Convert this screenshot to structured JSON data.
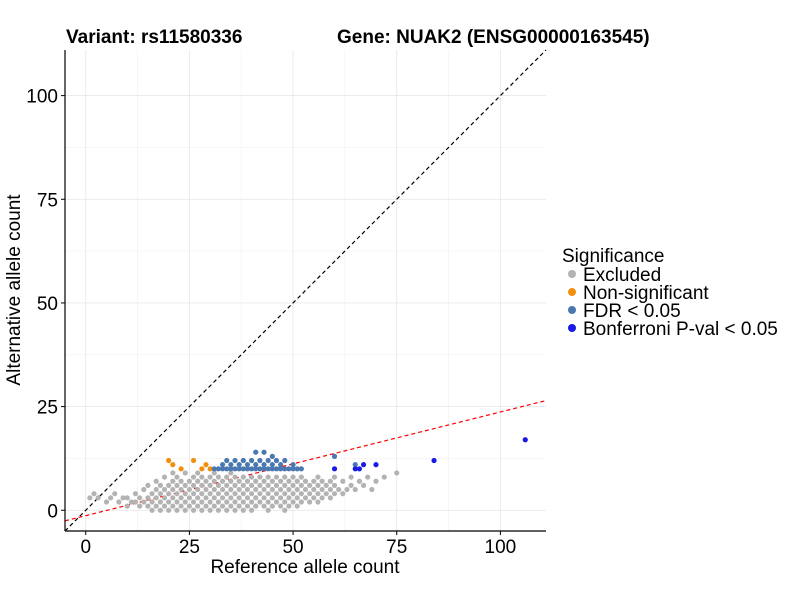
{
  "chart_data": {
    "type": "scatter",
    "title_left": "Variant: rs11580336",
    "title_right": "Gene: NUAK2 (ENSG00000163545)",
    "xlabel": "Reference allele count",
    "ylabel": "Alternative allele count",
    "xlim": [
      -5,
      111
    ],
    "ylim": [
      -5,
      111
    ],
    "xticks": [
      0,
      25,
      50,
      75,
      100
    ],
    "yticks": [
      0,
      25,
      50,
      75,
      100
    ],
    "grid": true,
    "reference_lines": [
      {
        "name": "identity-line",
        "slope": 1,
        "intercept": 0,
        "style": "dashed",
        "color": "#000000"
      },
      {
        "name": "fit-line",
        "slope": 0.25,
        "intercept": -1.3,
        "style": "dashed",
        "color": "#ff0000"
      }
    ],
    "legend": {
      "title": "Significance",
      "position": "right",
      "entries": [
        {
          "label": "Excluded",
          "color": "#b3b3b3"
        },
        {
          "label": "Non-significant",
          "color": "#f0900f"
        },
        {
          "label": "FDR < 0.05",
          "color": "#4a78b0"
        },
        {
          "label": "Bonferroni P-val < 0.05",
          "color": "#1a1ae6"
        }
      ]
    },
    "series": [
      {
        "name": "Excluded",
        "color": "#b3b3b3",
        "points": [
          [
            1,
            3
          ],
          [
            2,
            4
          ],
          [
            3,
            3
          ],
          [
            5,
            2
          ],
          [
            6,
            3
          ],
          [
            7,
            4
          ],
          [
            8,
            2
          ],
          [
            9,
            3
          ],
          [
            10,
            3
          ],
          [
            10,
            1
          ],
          [
            11,
            2
          ],
          [
            12,
            4
          ],
          [
            12,
            2
          ],
          [
            13,
            1
          ],
          [
            13,
            3
          ],
          [
            14,
            2
          ],
          [
            14,
            5
          ],
          [
            15,
            1
          ],
          [
            15,
            3
          ],
          [
            15,
            6
          ],
          [
            16,
            2
          ],
          [
            16,
            4
          ],
          [
            16,
            0
          ],
          [
            17,
            1
          ],
          [
            17,
            3
          ],
          [
            17,
            5
          ],
          [
            17,
            7
          ],
          [
            18,
            2
          ],
          [
            18,
            4
          ],
          [
            18,
            0
          ],
          [
            18,
            6
          ],
          [
            19,
            1
          ],
          [
            19,
            3
          ],
          [
            19,
            5
          ],
          [
            19,
            8
          ],
          [
            20,
            0
          ],
          [
            20,
            2
          ],
          [
            20,
            4
          ],
          [
            20,
            6
          ],
          [
            21,
            1
          ],
          [
            21,
            3
          ],
          [
            21,
            5
          ],
          [
            21,
            7
          ],
          [
            21,
            9
          ],
          [
            22,
            0
          ],
          [
            22,
            2
          ],
          [
            22,
            4
          ],
          [
            22,
            6
          ],
          [
            22,
            8
          ],
          [
            23,
            1
          ],
          [
            23,
            3
          ],
          [
            23,
            5
          ],
          [
            23,
            7
          ],
          [
            24,
            0
          ],
          [
            24,
            2
          ],
          [
            24,
            4
          ],
          [
            24,
            6
          ],
          [
            24,
            9
          ],
          [
            25,
            1
          ],
          [
            25,
            3
          ],
          [
            25,
            5
          ],
          [
            25,
            7
          ],
          [
            26,
            0
          ],
          [
            26,
            2
          ],
          [
            26,
            4
          ],
          [
            26,
            6
          ],
          [
            26,
            8
          ],
          [
            27,
            1
          ],
          [
            27,
            3
          ],
          [
            27,
            5
          ],
          [
            27,
            7
          ],
          [
            27,
            9
          ],
          [
            28,
            0
          ],
          [
            28,
            2
          ],
          [
            28,
            4
          ],
          [
            28,
            6
          ],
          [
            28,
            8
          ],
          [
            29,
            1
          ],
          [
            29,
            3
          ],
          [
            29,
            5
          ],
          [
            29,
            7
          ],
          [
            30,
            0
          ],
          [
            30,
            2
          ],
          [
            30,
            4
          ],
          [
            30,
            6
          ],
          [
            30,
            8
          ],
          [
            31,
            1
          ],
          [
            31,
            3
          ],
          [
            31,
            5
          ],
          [
            31,
            7
          ],
          [
            31,
            9
          ],
          [
            32,
            0
          ],
          [
            32,
            2
          ],
          [
            32,
            4
          ],
          [
            32,
            6
          ],
          [
            32,
            8
          ],
          [
            33,
            1
          ],
          [
            33,
            3
          ],
          [
            33,
            5
          ],
          [
            33,
            7
          ],
          [
            34,
            0
          ],
          [
            34,
            2
          ],
          [
            34,
            4
          ],
          [
            34,
            6
          ],
          [
            34,
            8
          ],
          [
            35,
            1
          ],
          [
            35,
            3
          ],
          [
            35,
            5
          ],
          [
            35,
            7
          ],
          [
            35,
            9
          ],
          [
            36,
            0
          ],
          [
            36,
            2
          ],
          [
            36,
            4
          ],
          [
            36,
            6
          ],
          [
            36,
            8
          ],
          [
            37,
            1
          ],
          [
            37,
            3
          ],
          [
            37,
            5
          ],
          [
            37,
            7
          ],
          [
            38,
            0
          ],
          [
            38,
            2
          ],
          [
            38,
            4
          ],
          [
            38,
            6
          ],
          [
            38,
            8
          ],
          [
            39,
            1
          ],
          [
            39,
            3
          ],
          [
            39,
            5
          ],
          [
            39,
            7
          ],
          [
            40,
            0
          ],
          [
            40,
            2
          ],
          [
            40,
            4
          ],
          [
            40,
            6
          ],
          [
            40,
            8
          ],
          [
            41,
            1
          ],
          [
            41,
            3
          ],
          [
            41,
            5
          ],
          [
            41,
            7
          ],
          [
            42,
            2
          ],
          [
            42,
            4
          ],
          [
            42,
            6
          ],
          [
            42,
            8
          ],
          [
            43,
            1
          ],
          [
            43,
            3
          ],
          [
            43,
            5
          ],
          [
            43,
            7
          ],
          [
            44,
            0
          ],
          [
            44,
            2
          ],
          [
            44,
            4
          ],
          [
            44,
            6
          ],
          [
            44,
            8
          ],
          [
            45,
            1
          ],
          [
            45,
            3
          ],
          [
            45,
            5
          ],
          [
            45,
            7
          ],
          [
            46,
            2
          ],
          [
            46,
            4
          ],
          [
            46,
            6
          ],
          [
            46,
            8
          ],
          [
            47,
            1
          ],
          [
            47,
            3
          ],
          [
            47,
            5
          ],
          [
            47,
            7
          ],
          [
            48,
            0
          ],
          [
            48,
            2
          ],
          [
            48,
            4
          ],
          [
            48,
            6
          ],
          [
            48,
            8
          ],
          [
            49,
            1
          ],
          [
            49,
            3
          ],
          [
            49,
            5
          ],
          [
            49,
            7
          ],
          [
            50,
            2
          ],
          [
            50,
            4
          ],
          [
            50,
            6
          ],
          [
            50,
            8
          ],
          [
            51,
            1
          ],
          [
            51,
            3
          ],
          [
            51,
            5
          ],
          [
            51,
            7
          ],
          [
            52,
            2
          ],
          [
            52,
            4
          ],
          [
            52,
            6
          ],
          [
            52,
            8
          ],
          [
            53,
            3
          ],
          [
            53,
            5
          ],
          [
            53,
            7
          ],
          [
            54,
            2
          ],
          [
            54,
            4
          ],
          [
            54,
            6
          ],
          [
            55,
            3
          ],
          [
            55,
            5
          ],
          [
            55,
            7
          ],
          [
            56,
            2
          ],
          [
            56,
            4
          ],
          [
            56,
            6
          ],
          [
            56,
            8
          ],
          [
            57,
            3
          ],
          [
            57,
            5
          ],
          [
            57,
            7
          ],
          [
            58,
            4
          ],
          [
            58,
            6
          ],
          [
            59,
            3
          ],
          [
            59,
            5
          ],
          [
            59,
            7
          ],
          [
            60,
            4
          ],
          [
            60,
            6
          ],
          [
            60,
            8
          ],
          [
            61,
            5
          ],
          [
            62,
            4
          ],
          [
            62,
            7
          ],
          [
            63,
            5
          ],
          [
            64,
            6
          ],
          [
            64,
            8
          ],
          [
            65,
            5
          ],
          [
            66,
            7
          ],
          [
            67,
            6
          ],
          [
            68,
            8
          ],
          [
            69,
            5
          ],
          [
            70,
            7
          ],
          [
            72,
            8
          ],
          [
            75,
            9
          ]
        ]
      },
      {
        "name": "Non-significant",
        "color": "#f0900f",
        "points": [
          [
            20,
            12
          ],
          [
            21,
            11
          ],
          [
            23,
            10
          ],
          [
            26,
            12
          ],
          [
            28,
            10
          ],
          [
            29,
            11
          ],
          [
            30,
            10
          ]
        ]
      },
      {
        "name": "FDR < 0.05",
        "color": "#4a78b0",
        "points": [
          [
            31,
            10
          ],
          [
            32,
            10
          ],
          [
            33,
            10
          ],
          [
            33,
            11
          ],
          [
            34,
            10
          ],
          [
            34,
            12
          ],
          [
            35,
            10
          ],
          [
            35,
            11
          ],
          [
            36,
            10
          ],
          [
            36,
            12
          ],
          [
            37,
            10
          ],
          [
            37,
            11
          ],
          [
            38,
            10
          ],
          [
            38,
            12
          ],
          [
            39,
            10
          ],
          [
            39,
            11
          ],
          [
            40,
            10
          ],
          [
            40,
            12
          ],
          [
            41,
            10
          ],
          [
            41,
            11
          ],
          [
            41,
            14
          ],
          [
            42,
            10
          ],
          [
            42,
            12
          ],
          [
            43,
            10
          ],
          [
            43,
            11
          ],
          [
            43,
            14
          ],
          [
            44,
            10
          ],
          [
            44,
            12
          ],
          [
            45,
            10
          ],
          [
            45,
            11
          ],
          [
            45,
            13
          ],
          [
            46,
            10
          ],
          [
            46,
            12
          ],
          [
            47,
            10
          ],
          [
            47,
            11
          ],
          [
            48,
            10
          ],
          [
            48,
            12
          ],
          [
            49,
            10
          ],
          [
            50,
            10
          ],
          [
            50,
            11
          ],
          [
            51,
            10
          ],
          [
            52,
            10
          ],
          [
            60,
            13
          ],
          [
            65,
            11
          ]
        ]
      },
      {
        "name": "Bonferroni P-val < 0.05",
        "color": "#1a1ae6",
        "points": [
          [
            60,
            10
          ],
          [
            65,
            10
          ],
          [
            66,
            10
          ],
          [
            67,
            11
          ],
          [
            70,
            11
          ],
          [
            84,
            12
          ],
          [
            106,
            17
          ]
        ]
      }
    ]
  }
}
